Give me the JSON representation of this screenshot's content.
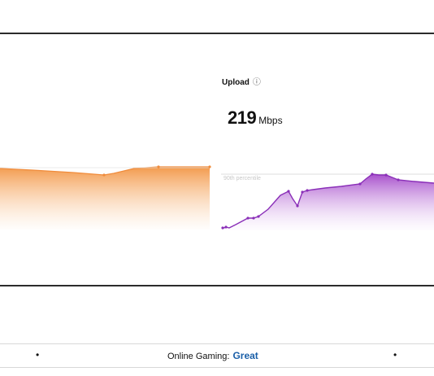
{
  "upload": {
    "label": "Upload",
    "info_glyph": "ⓘ",
    "value": "219",
    "unit": "Mbps",
    "accent_color": "#8a2fb8"
  },
  "download_graph": {
    "accent_color": "#f08c3c"
  },
  "percentile_label": "90th percentile",
  "footer": {
    "online_gaming_label": "Online Gaming:",
    "online_gaming_value": "Great",
    "online_gaming_color": "#1a5fa8",
    "bullet": "•"
  }
}
